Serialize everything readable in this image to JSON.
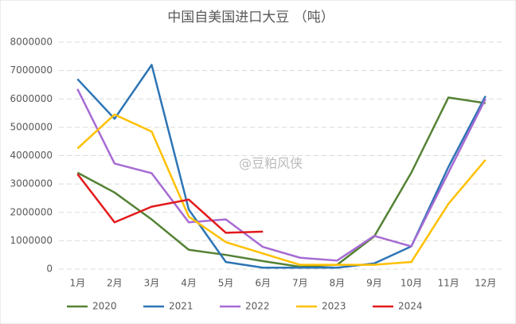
{
  "chart_data": {
    "type": "line",
    "title": "中国自美国进口大豆 （吨）",
    "categories": [
      "1月",
      "2月",
      "3月",
      "4月",
      "5月",
      "6月",
      "7月",
      "8月",
      "9月",
      "10月",
      "11月",
      "12月"
    ],
    "series": [
      {
        "name": "2020",
        "color": "#548235",
        "values": [
          3400000,
          2700000,
          1750000,
          680000,
          500000,
          280000,
          80000,
          150000,
          1150000,
          3400000,
          6050000,
          5850000
        ]
      },
      {
        "name": "2021",
        "color": "#2e75b6",
        "values": [
          6700000,
          5300000,
          7200000,
          2100000,
          250000,
          50000,
          50000,
          50000,
          200000,
          800000,
          3600000,
          6100000
        ]
      },
      {
        "name": "2022",
        "color": "#a66bd3",
        "values": [
          6350000,
          3720000,
          3380000,
          1650000,
          1750000,
          780000,
          400000,
          300000,
          1170000,
          800000,
          3400000,
          6000000
        ]
      },
      {
        "name": "2023",
        "color": "#ffc000",
        "values": [
          4250000,
          5450000,
          4850000,
          1850000,
          950000,
          550000,
          150000,
          150000,
          150000,
          250000,
          2300000,
          3850000
        ]
      },
      {
        "name": "2024",
        "color": "#e31a1c",
        "values": [
          3350000,
          1650000,
          2200000,
          2450000,
          1280000,
          1320000,
          null,
          null,
          null,
          null,
          null,
          null
        ]
      }
    ],
    "ylim": [
      0,
      8000000
    ],
    "yticks": [
      0,
      1000000,
      2000000,
      3000000,
      4000000,
      5000000,
      6000000,
      7000000,
      8000000
    ],
    "grid": true,
    "legend": "bottom",
    "watermark": "@豆粕风侠"
  }
}
